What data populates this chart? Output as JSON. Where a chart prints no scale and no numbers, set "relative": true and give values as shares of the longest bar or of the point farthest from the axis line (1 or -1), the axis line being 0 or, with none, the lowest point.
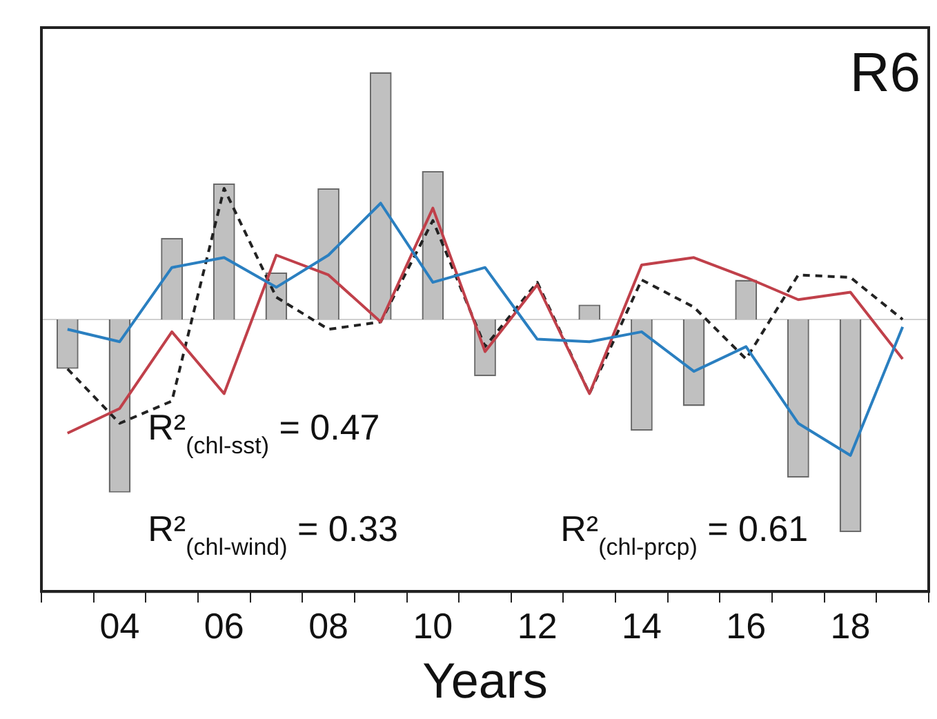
{
  "chart_data": {
    "type": "bar",
    "title": "R6",
    "xlabel": "Years",
    "relative": true,
    "grid": false,
    "legend": false,
    "categories": [
      null,
      "04",
      null,
      "06",
      null,
      "08",
      null,
      "10",
      null,
      "12",
      null,
      "14",
      null,
      "16",
      null,
      "18",
      null
    ],
    "series": [
      {
        "color": "#c0c0c0",
        "values": [
          -0.2,
          -0.7,
          0.33,
          0.55,
          0.19,
          0.53,
          1,
          0.6,
          -0.23,
          null,
          0.06,
          -0.45,
          -0.35,
          0.16,
          -0.64,
          -0.86,
          null
        ]
      },
      {
        "type": "line",
        "color": "#2a7fc0",
        "values": [
          -0.04,
          -0.09,
          0.21,
          0.25,
          0.13,
          0.26,
          0.47,
          0.15,
          0.21,
          -0.08,
          -0.09,
          -0.05,
          -0.21,
          -0.11,
          -0.42,
          -0.55,
          -0.03
        ]
      },
      {
        "type": "line",
        "color": "#c0404a",
        "values": [
          -0.46,
          -0.36,
          -0.05,
          -0.3,
          0.26,
          0.18,
          -0.01,
          0.45,
          -0.13,
          0.14,
          -0.3,
          0.22,
          0.25,
          0.17,
          0.08,
          0.11,
          -0.16
        ]
      },
      {
        "type": "line",
        "color": "#222222",
        "line_style": "dashed",
        "values": [
          -0.2,
          -0.42,
          -0.33,
          0.53,
          0.09,
          -0.04,
          -0.01,
          0.4,
          -0.11,
          0.15,
          -0.3,
          0.16,
          0.05,
          -0.16,
          0.18,
          0.17,
          0
        ]
      }
    ],
    "annotations": [
      "R²$_{(chl-sst)}$ = 0.47",
      "R²$_{(chl-wind)}$ = 0.33",
      "R²$_{(chl-prcp)}$ = 0.61"
    ]
  }
}
